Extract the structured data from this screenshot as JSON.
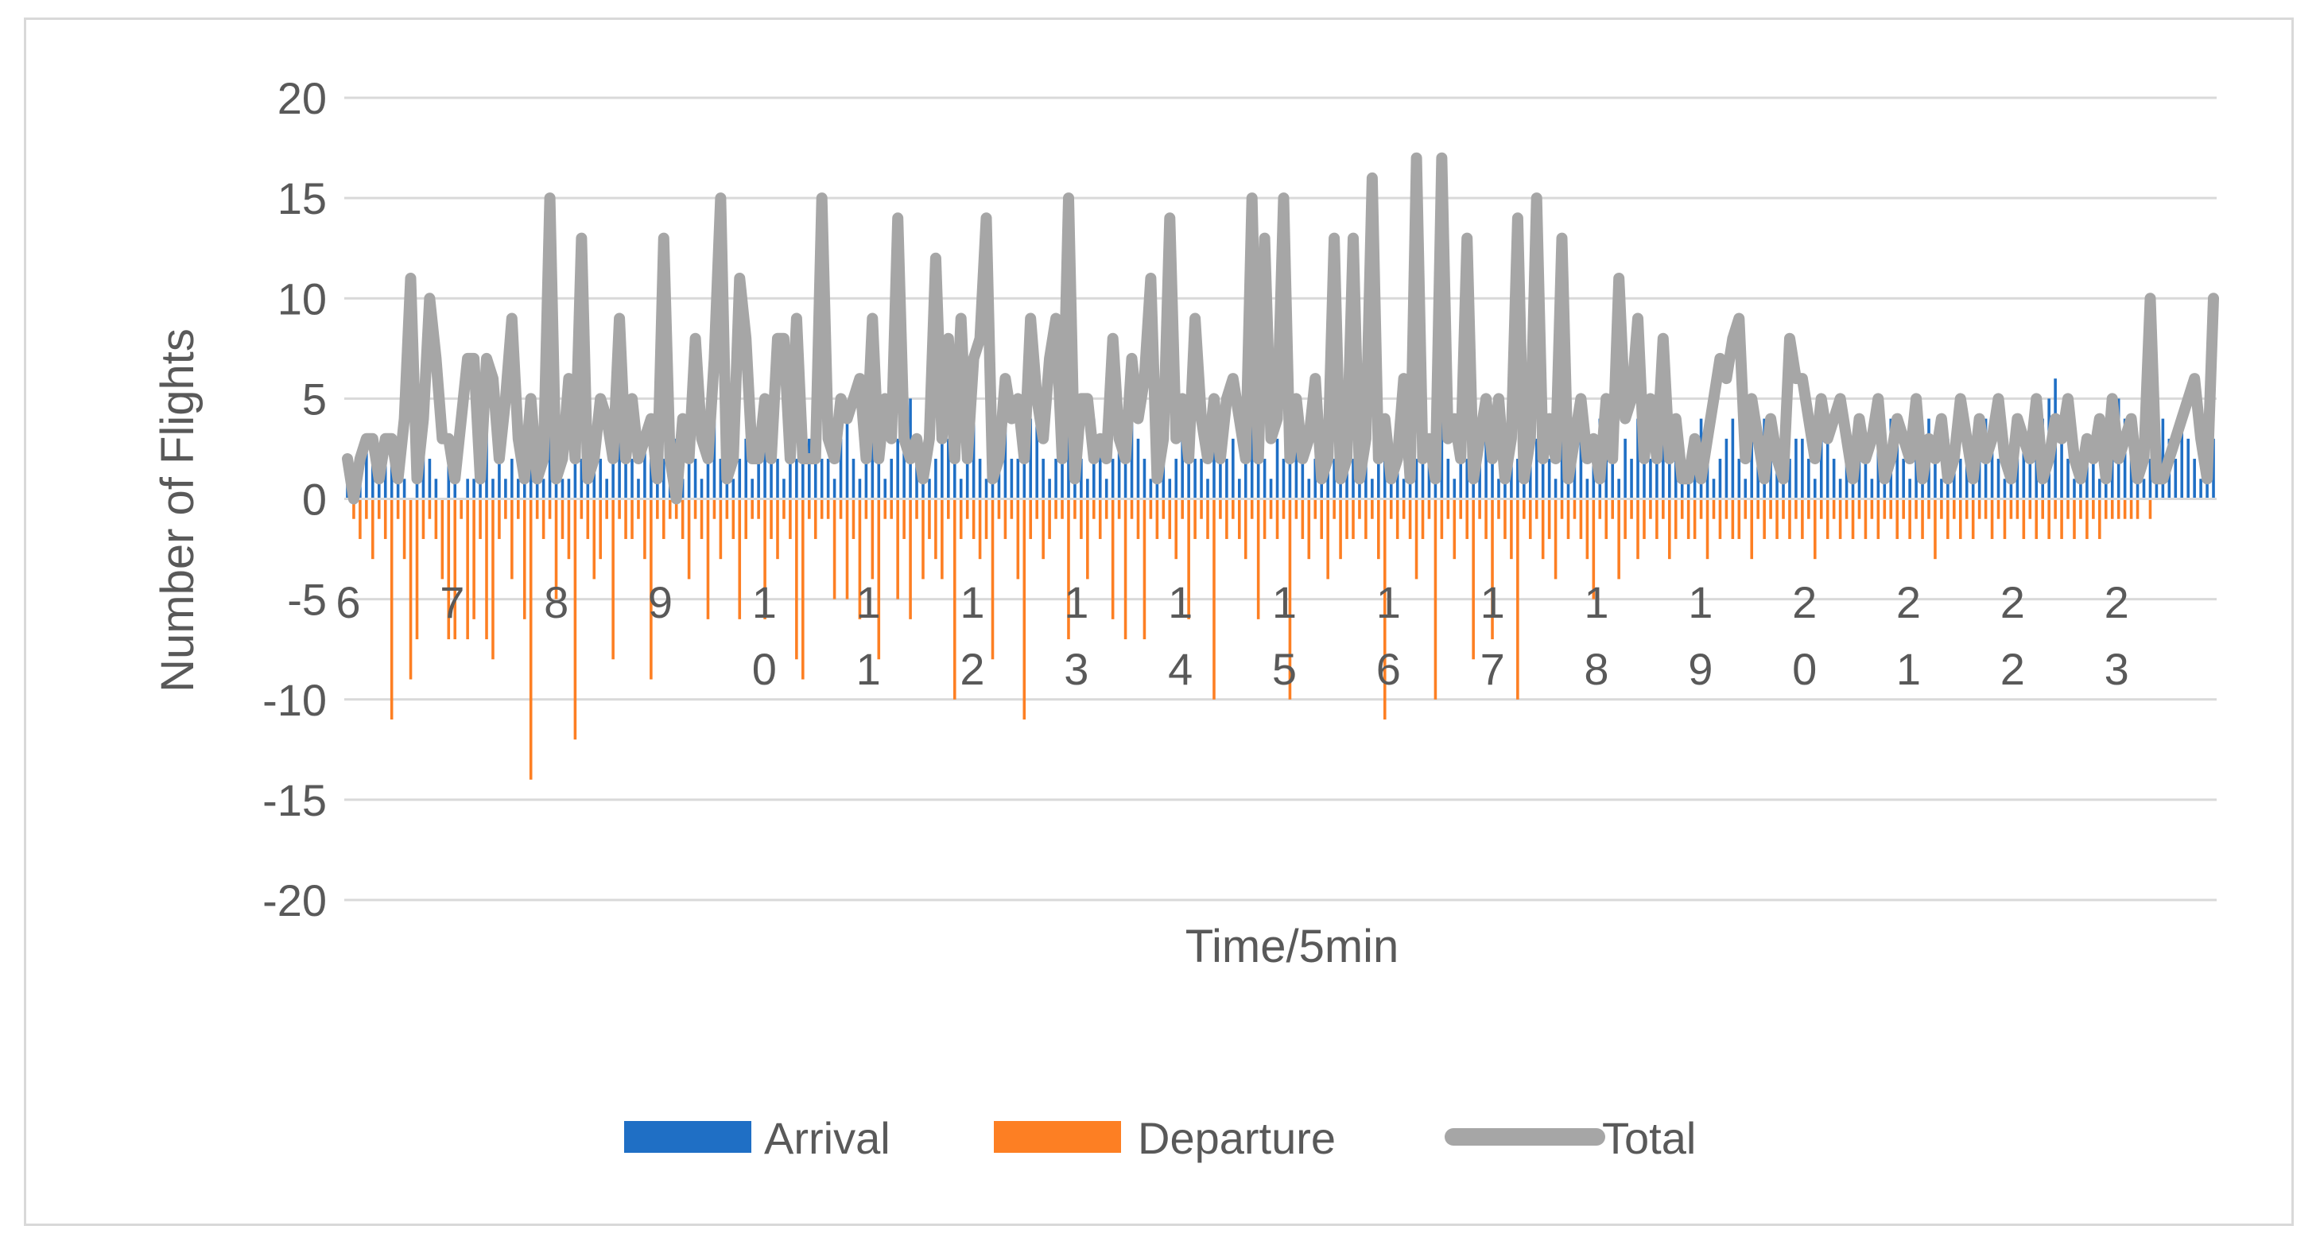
{
  "chart_data": {
    "type": "bar",
    "title": "",
    "xlabel": "Time/5min",
    "ylabel": "Number of Flights",
    "ylim": [
      -20,
      20
    ],
    "yticks": [
      20,
      15,
      10,
      5,
      0,
      -5,
      -10,
      -15,
      -20
    ],
    "grid": true,
    "legend_position": "bottom",
    "hour_labels": [
      {
        "top": "6",
        "bottom": ""
      },
      {
        "top": "7",
        "bottom": ""
      },
      {
        "top": "8",
        "bottom": ""
      },
      {
        "top": "9",
        "bottom": ""
      },
      {
        "top": "1",
        "bottom": "0"
      },
      {
        "top": "1",
        "bottom": "1"
      },
      {
        "top": "1",
        "bottom": "2"
      },
      {
        "top": "1",
        "bottom": "3"
      },
      {
        "top": "1",
        "bottom": "4"
      },
      {
        "top": "1",
        "bottom": "5"
      },
      {
        "top": "1",
        "bottom": "6"
      },
      {
        "top": "1",
        "bottom": "7"
      },
      {
        "top": "1",
        "bottom": "8"
      },
      {
        "top": "1",
        "bottom": "9"
      },
      {
        "top": "2",
        "bottom": "0"
      },
      {
        "top": "2",
        "bottom": "1"
      },
      {
        "top": "2",
        "bottom": "2"
      },
      {
        "top": "2",
        "bottom": "3"
      }
    ],
    "series": [
      {
        "name": "Arrival",
        "color": "#1f6fc5",
        "type": "bar",
        "values": [
          1,
          0,
          2,
          3,
          2,
          1,
          2,
          3,
          1,
          1,
          0,
          1,
          3,
          2,
          1,
          0,
          2,
          3,
          0,
          1,
          1,
          2,
          4,
          1,
          2,
          1,
          2,
          1,
          3,
          2,
          1,
          1,
          4,
          2,
          1,
          1,
          2,
          2,
          1,
          3,
          2,
          1,
          2,
          3,
          4,
          2,
          1,
          3,
          2,
          1,
          2,
          1,
          3,
          1,
          2,
          2,
          1,
          3,
          4,
          2,
          2,
          1,
          2,
          3,
          1,
          2,
          3,
          4,
          2,
          1,
          3,
          2,
          2,
          3,
          4,
          2,
          2,
          1,
          3,
          4,
          2,
          1,
          5,
          3,
          2,
          1,
          2,
          3,
          4,
          5,
          3,
          2,
          1,
          2,
          4,
          3,
          2,
          1,
          3,
          4,
          2,
          1,
          2,
          3,
          5,
          2,
          2,
          3,
          4,
          6,
          2,
          1,
          2,
          3,
          4,
          3,
          2,
          1,
          4,
          3,
          1,
          2,
          3,
          2,
          4,
          3,
          2,
          1,
          3,
          2,
          1,
          2,
          3,
          4,
          2,
          2,
          1,
          3,
          4,
          2,
          3,
          1,
          2,
          4,
          3,
          2,
          1,
          3,
          2,
          4,
          3,
          2,
          1,
          2,
          3,
          4,
          2,
          1,
          3,
          2,
          2,
          3,
          1,
          2,
          4,
          3,
          2,
          1,
          3,
          2,
          4,
          3,
          3,
          4,
          2,
          1,
          3,
          2,
          4,
          2,
          5,
          2,
          1,
          3,
          4,
          2,
          1,
          2,
          3,
          4,
          2,
          1,
          3,
          2,
          2,
          3,
          1,
          2,
          4,
          3,
          2,
          1,
          3,
          2,
          4,
          3,
          2,
          2,
          3,
          4,
          3,
          2,
          1,
          3,
          4,
          2,
          1,
          2,
          3,
          4,
          2,
          1,
          3,
          2,
          4,
          3,
          2,
          1,
          2,
          3,
          3,
          2,
          1,
          3,
          4,
          2,
          1,
          2,
          3,
          4,
          2,
          1,
          3,
          2,
          4,
          3,
          2,
          1,
          2,
          3,
          4,
          2,
          1,
          3,
          2,
          2,
          3,
          1,
          2,
          4,
          3,
          2,
          1,
          3,
          2,
          3,
          2,
          3,
          4,
          5,
          6,
          3,
          2,
          1,
          2,
          3,
          2,
          1,
          2,
          3,
          5,
          4,
          3,
          2,
          1,
          2,
          3,
          4,
          3,
          2,
          4,
          3,
          2,
          1,
          1,
          3
        ]
      },
      {
        "name": "Departure",
        "color": "#fd7f23",
        "type": "bar",
        "values": [
          0,
          -1,
          -2,
          -1,
          -3,
          -1,
          -2,
          -11,
          -1,
          -3,
          -9,
          -7,
          -2,
          -1,
          -2,
          -4,
          -7,
          -7,
          -1,
          -7,
          -6,
          -2,
          -7,
          -8,
          -2,
          -1,
          -4,
          -1,
          -6,
          -14,
          -1,
          -2,
          -1,
          -5,
          -2,
          -3,
          -12,
          -1,
          -2,
          -4,
          -3,
          -1,
          -8,
          -1,
          -2,
          -2,
          -1,
          -3,
          -9,
          -1,
          -2,
          -1,
          -1,
          -2,
          -4,
          -1,
          -2,
          -6,
          -1,
          -3,
          -1,
          -2,
          -6,
          -2,
          -1,
          -1,
          -6,
          -2,
          -3,
          -1,
          -2,
          -8,
          -9,
          -1,
          -2,
          -1,
          -1,
          -5,
          -1,
          -5,
          -2,
          -6,
          -1,
          -4,
          -8,
          -1,
          -1,
          -5,
          -2,
          -6,
          -1,
          -4,
          -2,
          -3,
          -4,
          -1,
          -10,
          -2,
          -1,
          -2,
          -3,
          -2,
          -8,
          -1,
          -2,
          -1,
          -4,
          -11,
          -2,
          -1,
          -3,
          -2,
          -1,
          -1,
          -7,
          -1,
          -2,
          -4,
          -1,
          -2,
          -1,
          -6,
          -1,
          -7,
          -1,
          -2,
          -7,
          -1,
          -2,
          -1,
          -2,
          -3,
          -1,
          -6,
          -2,
          -1,
          -2,
          -10,
          -1,
          -2,
          -1,
          -2,
          -3,
          -1,
          -6,
          -2,
          -1,
          -2,
          -1,
          -10,
          -1,
          -2,
          -3,
          -1,
          -2,
          -4,
          -1,
          -3,
          -2,
          -2,
          -1,
          -2,
          -1,
          -3,
          -11,
          -1,
          -2,
          -1,
          -2,
          -4,
          -2,
          -1,
          -10,
          -2,
          -1,
          -3,
          -1,
          -2,
          -8,
          -1,
          -2,
          -7,
          -1,
          -2,
          -3,
          -10,
          -1,
          -2,
          -1,
          -3,
          -2,
          -4,
          -1,
          -2,
          -1,
          -2,
          -3,
          -5,
          -1,
          -2,
          -1,
          -4,
          -2,
          -1,
          -3,
          -2,
          -1,
          -2,
          -1,
          -3,
          -2,
          -1,
          -2,
          -2,
          -1,
          -3,
          -1,
          -2,
          -1,
          -2,
          -2,
          -1,
          -3,
          -1,
          -2,
          -1,
          -2,
          -1,
          -2,
          -1,
          -2,
          -1,
          -3,
          -1,
          -2,
          -1,
          -2,
          -1,
          -2,
          -1,
          -2,
          -1,
          -2,
          -1,
          -1,
          -2,
          -1,
          -2,
          -1,
          -2,
          -1,
          -3,
          -1,
          -2,
          -1,
          -2,
          -1,
          -2,
          -1,
          -1,
          -2,
          -1,
          -2,
          -1,
          -1,
          -2,
          -1,
          -2,
          -1,
          -2,
          -1,
          -2,
          -1,
          -2,
          -1,
          -2,
          -1,
          -2,
          -1,
          -1,
          -1,
          -1,
          -1,
          -1,
          0,
          -1
        ]
      },
      {
        "name": "Total",
        "color": "#a6a6a6",
        "type": "line",
        "values": [
          2,
          0,
          2,
          3,
          3,
          1,
          3,
          3,
          1,
          4,
          11,
          1,
          4,
          10,
          7,
          3,
          3,
          1,
          4,
          7,
          7,
          1,
          7,
          6,
          2,
          5,
          9,
          3,
          1,
          5,
          1,
          2,
          15,
          1,
          2,
          6,
          2,
          13,
          1,
          2,
          5,
          4,
          2,
          9,
          2,
          5,
          2,
          3,
          4,
          1,
          13,
          2,
          0,
          4,
          2,
          8,
          3,
          2,
          7,
          15,
          1,
          2,
          11,
          8,
          2,
          2,
          5,
          2,
          8,
          8,
          2,
          9,
          2,
          2,
          2,
          15,
          3,
          2,
          5,
          4,
          5,
          6,
          2,
          9,
          2,
          5,
          3,
          14,
          3,
          2,
          3,
          1,
          3,
          12,
          3,
          8,
          2,
          9,
          2,
          7,
          8,
          14,
          1,
          2,
          6,
          4,
          5,
          2,
          9,
          5,
          3,
          7,
          9,
          2,
          15,
          1,
          5,
          5,
          2,
          3,
          2,
          8,
          3,
          2,
          7,
          4,
          6,
          11,
          1,
          3,
          14,
          3,
          5,
          2,
          9,
          4,
          2,
          5,
          2,
          5,
          6,
          4,
          2,
          15,
          2,
          13,
          3,
          4,
          15,
          2,
          5,
          2,
          3,
          6,
          1,
          2,
          13,
          1,
          2,
          13,
          1,
          3,
          16,
          2,
          4,
          1,
          2,
          6,
          1,
          17,
          2,
          3,
          1,
          17,
          3,
          4,
          2,
          13,
          1,
          3,
          5,
          2,
          5,
          1,
          3,
          14,
          1,
          3,
          15,
          2,
          4,
          2,
          13,
          1,
          3,
          5,
          2,
          3,
          1,
          5,
          2,
          11,
          4,
          5,
          9,
          2,
          5,
          2,
          8,
          2,
          4,
          1,
          1,
          3,
          1,
          3,
          5,
          7,
          6,
          8,
          9,
          2,
          5,
          3,
          1,
          4,
          2,
          1,
          8,
          6,
          6,
          4,
          2,
          5,
          3,
          4,
          5,
          3,
          1,
          4,
          2,
          3,
          5,
          1,
          2,
          4,
          3,
          2,
          5,
          1,
          3,
          2,
          4,
          1,
          2,
          5,
          3,
          1,
          4,
          2,
          3,
          5,
          2,
          1,
          4,
          3,
          2,
          5,
          1,
          2,
          4,
          3,
          5,
          2,
          1,
          3,
          2,
          4,
          1,
          5,
          2,
          3,
          4,
          1,
          2,
          10,
          1,
          1,
          2,
          3,
          4,
          5,
          6,
          3,
          1,
          10
        ]
      }
    ]
  }
}
